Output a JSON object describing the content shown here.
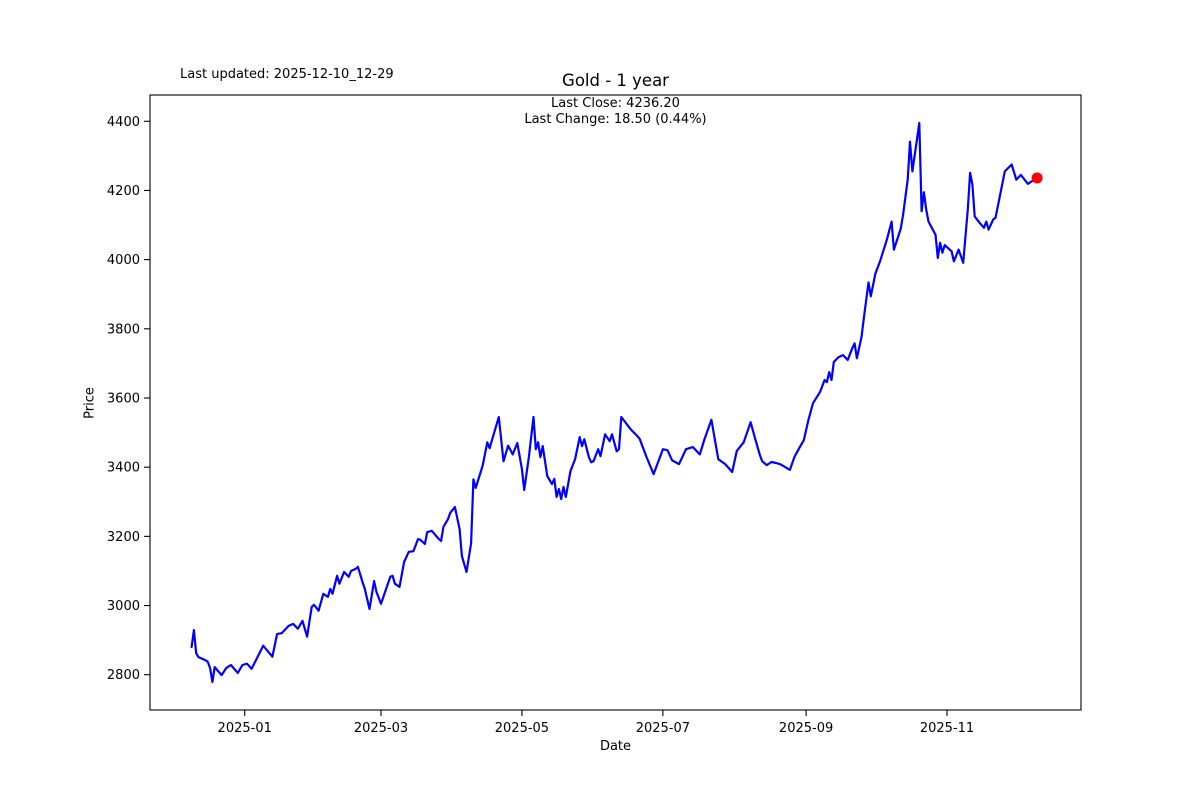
{
  "figure": {
    "last_updated": "Last updated: 2025-12-10_12-29",
    "title": "Gold - 1 year",
    "annotation_line1": "Last Close: 4236.20",
    "annotation_line2": "Last Change: 18.50 (0.44%)"
  },
  "chart_data": {
    "type": "line",
    "title": "Gold - 1 year",
    "xlabel": "Date",
    "ylabel": "Price",
    "grid": false,
    "legend": null,
    "last_close": 4236.2,
    "last_change": "18.50 (0.44%)",
    "line_color": "#0000ff",
    "end_marker_color": "#ff0000",
    "axis_color": "#000000",
    "x_domain": [
      "2024-11-21",
      "2025-12-29"
    ],
    "y_domain": [
      2698,
      4476
    ],
    "yticks": [
      2800,
      3000,
      3200,
      3400,
      3600,
      3800,
      4000,
      4200,
      4400
    ],
    "xticks": [
      {
        "label": "2025-01",
        "date": "2025-01-01"
      },
      {
        "label": "2025-03",
        "date": "2025-03-01"
      },
      {
        "label": "2025-05",
        "date": "2025-05-01"
      },
      {
        "label": "2025-07",
        "date": "2025-07-01"
      },
      {
        "label": "2025-09",
        "date": "2025-09-01"
      },
      {
        "label": "2025-11",
        "date": "2025-11-01"
      }
    ],
    "series": [
      {
        "name": "Gold",
        "points": [
          [
            "2024-12-09",
            2880
          ],
          [
            "2024-12-10",
            2929
          ],
          [
            "2024-12-11",
            2862
          ],
          [
            "2024-12-12",
            2851
          ],
          [
            "2024-12-15",
            2842
          ],
          [
            "2024-12-16",
            2837
          ],
          [
            "2024-12-17",
            2819
          ],
          [
            "2024-12-18",
            2779
          ],
          [
            "2024-12-19",
            2822
          ],
          [
            "2024-12-22",
            2799
          ],
          [
            "2024-12-24",
            2819
          ],
          [
            "2024-12-26",
            2828
          ],
          [
            "2024-12-29",
            2805
          ],
          [
            "2024-12-31",
            2828
          ],
          [
            "2025-01-02",
            2832
          ],
          [
            "2025-01-04",
            2817
          ],
          [
            "2025-01-09",
            2884
          ],
          [
            "2025-01-13",
            2852
          ],
          [
            "2025-01-15",
            2918
          ],
          [
            "2025-01-17",
            2920
          ],
          [
            "2025-01-20",
            2941
          ],
          [
            "2025-01-22",
            2947
          ],
          [
            "2025-01-24",
            2933
          ],
          [
            "2025-01-26",
            2956
          ],
          [
            "2025-01-28",
            2910
          ],
          [
            "2025-01-30",
            2996
          ],
          [
            "2025-01-31",
            3002
          ],
          [
            "2025-02-02",
            2985
          ],
          [
            "2025-02-04",
            3034
          ],
          [
            "2025-02-06",
            3025
          ],
          [
            "2025-02-07",
            3048
          ],
          [
            "2025-02-08",
            3034
          ],
          [
            "2025-02-10",
            3086
          ],
          [
            "2025-02-11",
            3063
          ],
          [
            "2025-02-13",
            3097
          ],
          [
            "2025-02-15",
            3083
          ],
          [
            "2025-02-16",
            3100
          ],
          [
            "2025-02-18",
            3106
          ],
          [
            "2025-02-19",
            3112
          ],
          [
            "2025-02-21",
            3068
          ],
          [
            "2025-02-22",
            3048
          ],
          [
            "2025-02-24",
            2990
          ],
          [
            "2025-02-26",
            3071
          ],
          [
            "2025-02-27",
            3040
          ],
          [
            "2025-03-01",
            3005
          ],
          [
            "2025-03-05",
            3083
          ],
          [
            "2025-03-06",
            3086
          ],
          [
            "2025-03-07",
            3063
          ],
          [
            "2025-03-09",
            3054
          ],
          [
            "2025-03-11",
            3126
          ],
          [
            "2025-03-13",
            3155
          ],
          [
            "2025-03-15",
            3157
          ],
          [
            "2025-03-17",
            3192
          ],
          [
            "2025-03-18",
            3190
          ],
          [
            "2025-03-20",
            3178
          ],
          [
            "2025-03-21",
            3212
          ],
          [
            "2025-03-23",
            3216
          ],
          [
            "2025-03-26",
            3192
          ],
          [
            "2025-03-27",
            3187
          ],
          [
            "2025-03-28",
            3227
          ],
          [
            "2025-03-30",
            3250
          ],
          [
            "2025-03-31",
            3268
          ],
          [
            "2025-04-02",
            3285
          ],
          [
            "2025-04-04",
            3221
          ],
          [
            "2025-04-05",
            3143
          ],
          [
            "2025-04-07",
            3097
          ],
          [
            "2025-04-09",
            3180
          ],
          [
            "2025-04-10",
            3365
          ],
          [
            "2025-04-11",
            3340
          ],
          [
            "2025-04-14",
            3405
          ],
          [
            "2025-04-16",
            3472
          ],
          [
            "2025-04-17",
            3455
          ],
          [
            "2025-04-19",
            3500
          ],
          [
            "2025-04-21",
            3545
          ],
          [
            "2025-04-23",
            3417
          ],
          [
            "2025-04-25",
            3462
          ],
          [
            "2025-04-27",
            3437
          ],
          [
            "2025-04-29",
            3470
          ],
          [
            "2025-05-01",
            3395
          ],
          [
            "2025-05-02",
            3334
          ],
          [
            "2025-05-04",
            3430
          ],
          [
            "2025-05-06",
            3545
          ],
          [
            "2025-05-07",
            3452
          ],
          [
            "2025-05-08",
            3472
          ],
          [
            "2025-05-09",
            3429
          ],
          [
            "2025-05-10",
            3461
          ],
          [
            "2025-05-12",
            3374
          ],
          [
            "2025-05-14",
            3351
          ],
          [
            "2025-05-15",
            3366
          ],
          [
            "2025-05-16",
            3314
          ],
          [
            "2025-05-17",
            3337
          ],
          [
            "2025-05-18",
            3308
          ],
          [
            "2025-05-19",
            3343
          ],
          [
            "2025-05-20",
            3314
          ],
          [
            "2025-05-22",
            3389
          ],
          [
            "2025-05-24",
            3423
          ],
          [
            "2025-05-26",
            3487
          ],
          [
            "2025-05-27",
            3461
          ],
          [
            "2025-05-28",
            3481
          ],
          [
            "2025-05-30",
            3429
          ],
          [
            "2025-05-31",
            3414
          ],
          [
            "2025-06-01",
            3418
          ],
          [
            "2025-06-03",
            3452
          ],
          [
            "2025-06-04",
            3432
          ],
          [
            "2025-06-06",
            3495
          ],
          [
            "2025-06-08",
            3475
          ],
          [
            "2025-06-09",
            3495
          ],
          [
            "2025-06-11",
            3446
          ],
          [
            "2025-06-12",
            3452
          ],
          [
            "2025-06-13",
            3545
          ],
          [
            "2025-06-17",
            3510
          ],
          [
            "2025-06-20",
            3490
          ],
          [
            "2025-06-21",
            3481
          ],
          [
            "2025-06-24",
            3428
          ],
          [
            "2025-06-27",
            3380
          ],
          [
            "2025-07-01",
            3452
          ],
          [
            "2025-07-03",
            3449
          ],
          [
            "2025-07-05",
            3420
          ],
          [
            "2025-07-08",
            3409
          ],
          [
            "2025-07-11",
            3452
          ],
          [
            "2025-07-14",
            3458
          ],
          [
            "2025-07-17",
            3437
          ],
          [
            "2025-07-19",
            3480
          ],
          [
            "2025-07-22",
            3537
          ],
          [
            "2025-07-25",
            3423
          ],
          [
            "2025-07-28",
            3409
          ],
          [
            "2025-07-31",
            3386
          ],
          [
            "2025-08-02",
            3447
          ],
          [
            "2025-08-05",
            3472
          ],
          [
            "2025-08-08",
            3530
          ],
          [
            "2025-08-10",
            3481
          ],
          [
            "2025-08-12",
            3435
          ],
          [
            "2025-08-13",
            3417
          ],
          [
            "2025-08-15",
            3406
          ],
          [
            "2025-08-17",
            3415
          ],
          [
            "2025-08-19",
            3412
          ],
          [
            "2025-08-21",
            3408
          ],
          [
            "2025-08-25",
            3392
          ],
          [
            "2025-08-27",
            3430
          ],
          [
            "2025-08-29",
            3455
          ],
          [
            "2025-08-31",
            3478
          ],
          [
            "2025-09-02",
            3536
          ],
          [
            "2025-09-04",
            3585
          ],
          [
            "2025-09-07",
            3617
          ],
          [
            "2025-09-09",
            3652
          ],
          [
            "2025-09-10",
            3646
          ],
          [
            "2025-09-11",
            3675
          ],
          [
            "2025-09-12",
            3652
          ],
          [
            "2025-09-13",
            3704
          ],
          [
            "2025-09-15",
            3718
          ],
          [
            "2025-09-17",
            3724
          ],
          [
            "2025-09-19",
            3710
          ],
          [
            "2025-09-21",
            3744
          ],
          [
            "2025-09-22",
            3758
          ],
          [
            "2025-09-23",
            3715
          ],
          [
            "2025-09-25",
            3776
          ],
          [
            "2025-09-26",
            3830
          ],
          [
            "2025-09-28",
            3934
          ],
          [
            "2025-09-29",
            3894
          ],
          [
            "2025-10-01",
            3960
          ],
          [
            "2025-10-03",
            3995
          ],
          [
            "2025-10-06",
            4058
          ],
          [
            "2025-10-08",
            4110
          ],
          [
            "2025-10-09",
            4029
          ],
          [
            "2025-10-12",
            4090
          ],
          [
            "2025-10-13",
            4130
          ],
          [
            "2025-10-15",
            4231
          ],
          [
            "2025-10-16",
            4341
          ],
          [
            "2025-10-17",
            4255
          ],
          [
            "2025-10-20",
            4395
          ],
          [
            "2025-10-21",
            4140
          ],
          [
            "2025-10-22",
            4195
          ],
          [
            "2025-10-23",
            4145
          ],
          [
            "2025-10-24",
            4110
          ],
          [
            "2025-10-27",
            4072
          ],
          [
            "2025-10-28",
            4005
          ],
          [
            "2025-10-29",
            4049
          ],
          [
            "2025-10-30",
            4020
          ],
          [
            "2025-10-31",
            4042
          ],
          [
            "2025-11-03",
            4024
          ],
          [
            "2025-11-04",
            3995
          ],
          [
            "2025-11-06",
            4029
          ],
          [
            "2025-11-08",
            3991
          ],
          [
            "2025-11-10",
            4145
          ],
          [
            "2025-11-11",
            4251
          ],
          [
            "2025-11-12",
            4217
          ],
          [
            "2025-11-13",
            4125
          ],
          [
            "2025-11-15",
            4107
          ],
          [
            "2025-11-17",
            4092
          ],
          [
            "2025-11-18",
            4110
          ],
          [
            "2025-11-19",
            4087
          ],
          [
            "2025-11-21",
            4116
          ],
          [
            "2025-11-22",
            4121
          ],
          [
            "2025-11-24",
            4187
          ],
          [
            "2025-11-26",
            4255
          ],
          [
            "2025-11-29",
            4275
          ],
          [
            "2025-12-01",
            4231
          ],
          [
            "2025-12-03",
            4245
          ],
          [
            "2025-12-06",
            4219
          ],
          [
            "2025-12-08",
            4228
          ],
          [
            "2025-12-10",
            4236.2
          ]
        ]
      }
    ],
    "end_marker": {
      "date": "2025-12-10",
      "value": 4236.2
    }
  }
}
